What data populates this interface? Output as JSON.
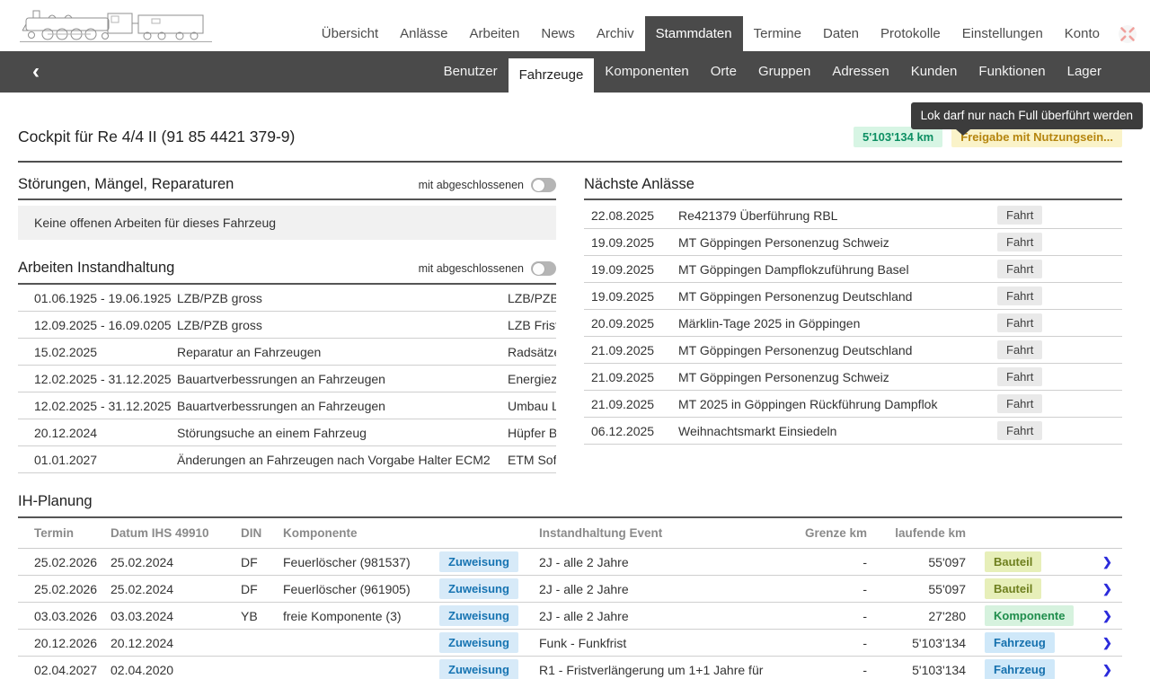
{
  "nav": {
    "logo": "steam-locomotive-drawing",
    "items": [
      "Übersicht",
      "Anlässe",
      "Arbeiten",
      "News",
      "Archiv",
      "Stammdaten",
      "Termine",
      "Daten",
      "Protokolle",
      "Einstellungen",
      "Konto"
    ],
    "active": "Stammdaten",
    "fullscreen_icon": "fullscreen-expand"
  },
  "subnav": {
    "back_icon": "‹",
    "items": [
      "Benutzer",
      "Fahrzeuge",
      "Komponenten",
      "Orte",
      "Gruppen",
      "Adressen",
      "Kunden",
      "Funktionen",
      "Lager"
    ],
    "active": "Fahrzeuge"
  },
  "tooltip": {
    "text": "Lok darf nur nach Full überführt werden"
  },
  "page": {
    "title": "Cockpit für Re 4/4 II (91 85 4421 379-9)",
    "km_badge": "5'103'134 km",
    "release_badge": "Freigabe mit Nutzungsein..."
  },
  "faults_section": {
    "title": "Störungen, Mängel, Reparaturen",
    "toggle_label": "mit abgeschlossenen",
    "toggle_state": "off",
    "empty_message": "Keine offenen Arbeiten für dieses Fahrzeug"
  },
  "maintenance_section": {
    "title": "Arbeiten Instandhaltung",
    "toggle_label": "mit abgeschlossenen",
    "toggle_state": "off",
    "rows": [
      {
        "period": "01.06.1925 - 19.06.1925",
        "task": "LZB/PZB gross",
        "detail": "LZB/PZB"
      },
      {
        "period": "12.09.2025 - 16.09.0205",
        "task": "LZB/PZB gross",
        "detail": "LZB Frist"
      },
      {
        "period": "15.02.2025",
        "task": "Reparatur an Fahrzeugen",
        "detail": "Radsätze"
      },
      {
        "period": "12.02.2025 - 31.12.2025",
        "task": "Bauartverbessrungen an Fahrzeugen",
        "detail": "Energiezä"
      },
      {
        "period": "12.02.2025 - 31.12.2025",
        "task": "Bauartverbessrungen an Fahrzeugen",
        "detail": "Umbau LT"
      },
      {
        "period": "20.12.2024",
        "task": "Störungsuche an einem Fahrzeug",
        "detail": "Hüpfer Bl"
      },
      {
        "period": "01.01.2027",
        "task": "Änderungen an Fahrzeugen nach Vorgabe Halter ECM2",
        "detail": "ETM Soft"
      }
    ]
  },
  "events_section": {
    "title": "Nächste Anlässe",
    "rows": [
      {
        "date": "22.08.2025",
        "title": "Re421379 Überführung RBL",
        "badge": "Fahrt"
      },
      {
        "date": "19.09.2025",
        "title": "MT Göppingen Personenzug Schweiz",
        "badge": "Fahrt"
      },
      {
        "date": "19.09.2025",
        "title": "MT Göppingen Dampflokzuführung Basel",
        "badge": "Fahrt"
      },
      {
        "date": "19.09.2025",
        "title": "MT Göppingen Personenzug Deutschland",
        "badge": "Fahrt"
      },
      {
        "date": "20.09.2025",
        "title": "Märklin-Tage 2025 in Göppingen",
        "badge": "Fahrt"
      },
      {
        "date": "21.09.2025",
        "title": "MT Göppingen Personenzug Deutschland",
        "badge": "Fahrt"
      },
      {
        "date": "21.09.2025",
        "title": "MT Göppingen Personenzug Schweiz",
        "badge": "Fahrt"
      },
      {
        "date": "21.09.2025",
        "title": "MT 2025 in Göppingen Rückführung Dampflok",
        "badge": "Fahrt"
      },
      {
        "date": "06.12.2025",
        "title": "Weihnachtsmarkt Einsiedeln",
        "badge": "Fahrt"
      }
    ]
  },
  "planning_section": {
    "title": "IH-Planung",
    "columns": {
      "termin": "Termin",
      "datum": "Datum IHS 49910",
      "din": "DIN",
      "komponente": "Komponente",
      "event": "Instandhaltung Event",
      "grenze": "Grenze km",
      "laufende": "laufende km"
    },
    "action_label": "Zuweisung",
    "rows": [
      {
        "termin": "25.02.2026",
        "datum": "25.02.2024",
        "din": "DF",
        "komponente": "Feuerlöscher (981537)",
        "event": "2J - alle 2 Jahre",
        "grenze": "-",
        "laufende": "55'097",
        "type": "Bauteil"
      },
      {
        "termin": "25.02.2026",
        "datum": "25.02.2024",
        "din": "DF",
        "komponente": "Feuerlöscher (961905)",
        "event": "2J - alle 2 Jahre",
        "grenze": "-",
        "laufende": "55'097",
        "type": "Bauteil"
      },
      {
        "termin": "03.03.2026",
        "datum": "03.03.2024",
        "din": "YB",
        "komponente": "freie Komponente (3)",
        "event": "2J - alle 2 Jahre",
        "grenze": "-",
        "laufende": "27'280",
        "type": "Komponente"
      },
      {
        "termin": "20.12.2026",
        "datum": "20.12.2024",
        "din": "",
        "komponente": "",
        "event": "Funk - Funkfrist",
        "grenze": "-",
        "laufende": "5'103'134",
        "type": "Fahrzeug"
      },
      {
        "termin": "02.04.2027",
        "datum": "02.04.2020",
        "din": "",
        "komponente": "",
        "event": "R1 - Fristverlängerung um 1+1 Jahre für",
        "grenze": "-",
        "laufende": "5'103'134",
        "type": "Fahrzeug"
      }
    ]
  },
  "colors": {
    "nav_dark": "#4a4a4a",
    "km_badge_bg": "#d7f5e4",
    "km_badge_text": "#0d8f63",
    "release_badge_bg": "#faf3c9",
    "release_badge_text": "#b5850e",
    "zuweisung_bg": "#d7eaf8",
    "zuweisung_text": "#1774b2",
    "bauteil_bg": "#e7efb9",
    "bauteil_text": "#6e7f1e",
    "komponente_bg": "#d6f2de",
    "komponente_text": "#1f8d4c",
    "fahrzeug_bg": "#cfe8f9",
    "fahrzeug_text": "#1671ae",
    "chevron_blue": "#2b2bdb",
    "tooltip_bg": "#3c3c3c"
  }
}
